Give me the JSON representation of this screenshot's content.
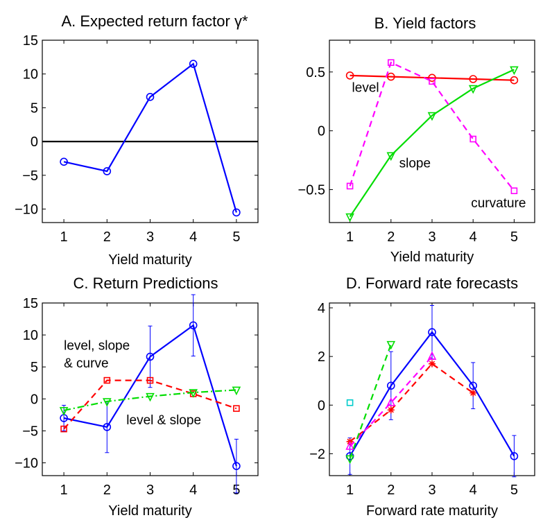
{
  "chart_data": [
    {
      "panel": "A",
      "type": "line",
      "title": "A. Expected return factor γ*",
      "xlabel": "Yield maturity",
      "ylabel": "",
      "x": [
        1,
        2,
        3,
        4,
        5
      ],
      "xlim": [
        0.5,
        5.5
      ],
      "ylim": [
        -12,
        15
      ],
      "yticks": [
        -10,
        -5,
        0,
        5,
        10,
        15
      ],
      "yticklabels": [
        "−10",
        "−5",
        "0",
        "5",
        "10",
        "15"
      ],
      "xticklabels": [
        "1",
        "2",
        "3",
        "4",
        "5"
      ],
      "zero_line": true,
      "series": [
        {
          "values": [
            -3.0,
            -4.4,
            6.6,
            11.5,
            -10.5
          ],
          "color": "#0000ff",
          "dash": "solid",
          "marker": "circle"
        }
      ],
      "annotations": []
    },
    {
      "panel": "B",
      "type": "line",
      "title": "B. Yield factors",
      "xlabel": "Yield maturity",
      "ylabel": "",
      "x": [
        1,
        2,
        3,
        4,
        5
      ],
      "xlim": [
        0.5,
        5.5
      ],
      "ylim": [
        -0.78,
        0.77
      ],
      "yticks": [
        -0.5,
        0,
        0.5
      ],
      "yticklabels": [
        "−0.5",
        "0",
        "0.5"
      ],
      "xticklabels": [
        "1",
        "2",
        "3",
        "4",
        "5"
      ],
      "zero_line": false,
      "series": [
        {
          "values": [
            0.47,
            0.46,
            0.45,
            0.44,
            0.43
          ],
          "color": "#ff0000",
          "dash": "solid",
          "marker": "circle"
        },
        {
          "values": [
            -0.73,
            -0.21,
            0.13,
            0.36,
            0.52
          ],
          "color": "#00dd00",
          "dash": "solid",
          "marker": "triangle-down"
        },
        {
          "values": [
            -0.47,
            0.58,
            0.42,
            -0.07,
            -0.51
          ],
          "color": "#ff00ff",
          "dash": "dashed",
          "marker": "square"
        }
      ],
      "annotations": [
        {
          "text": "level",
          "x": 1.05,
          "y": 0.33
        },
        {
          "text": "slope",
          "x": 2.2,
          "y": -0.31
        },
        {
          "text": "curvature",
          "x": 3.95,
          "y": -0.65
        }
      ]
    },
    {
      "panel": "C",
      "type": "line",
      "title": "C. Return Predictions",
      "xlabel": "Yield maturity",
      "ylabel": "",
      "x": [
        1,
        2,
        3,
        4,
        5
      ],
      "xlim": [
        0.5,
        5.5
      ],
      "ylim": [
        -12,
        15
      ],
      "yticks": [
        -10,
        -5,
        0,
        5,
        10,
        15
      ],
      "yticklabels": [
        "−10",
        "−5",
        "0",
        "5",
        "10",
        "15"
      ],
      "xticklabels": [
        "1",
        "2",
        "3",
        "4",
        "5"
      ],
      "zero_line": false,
      "series": [
        {
          "values": [
            -3.0,
            -4.4,
            6.6,
            11.5,
            -10.5
          ],
          "color": "#0000ff",
          "dash": "solid",
          "marker": "circle",
          "errors": [
            2.0,
            4.0,
            4.8,
            4.8,
            4.2
          ]
        },
        {
          "values": [
            -4.7,
            2.9,
            2.9,
            0.8,
            -1.5
          ],
          "color": "#ff0000",
          "dash": "dashed",
          "marker": "square"
        },
        {
          "values": [
            -1.8,
            -0.4,
            0.4,
            1.0,
            1.4
          ],
          "color": "#00dd00",
          "dash": "dashdot",
          "marker": "triangle-down"
        }
      ],
      "annotations": [
        {
          "text": "level, slope",
          "x": 1.0,
          "y": 7.7
        },
        {
          "text": "& curve",
          "x": 1.0,
          "y": 4.9
        },
        {
          "text": "level & slope",
          "x": 2.45,
          "y": -4.0
        }
      ]
    },
    {
      "panel": "D",
      "type": "line",
      "title": "D. Forward rate forecasts",
      "xlabel": "Forward rate maturity",
      "ylabel": "",
      "x": [
        1,
        2,
        3,
        4,
        5
      ],
      "xlim": [
        0.5,
        5.5
      ],
      "ylim": [
        -2.9,
        4.2
      ],
      "yticks": [
        -2,
        0,
        2,
        4
      ],
      "yticklabels": [
        "−2",
        "0",
        "2",
        "4"
      ],
      "xticklabels": [
        "1",
        "2",
        "3",
        "4",
        "5"
      ],
      "zero_line": false,
      "series": [
        {
          "values": [
            -2.1,
            0.8,
            3.0,
            0.8,
            -2.1
          ],
          "color": "#0000ff",
          "dash": "solid",
          "marker": "circle",
          "errors": [
            0.75,
            1.4,
            1.1,
            0.95,
            0.85
          ]
        },
        {
          "values": [
            -1.5,
            -0.2,
            1.7,
            0.5,
            null
          ],
          "color": "#ff0000",
          "dash": "dashed",
          "marker": "star"
        },
        {
          "values": [
            -1.7,
            0.1,
            2.0,
            null,
            null
          ],
          "color": "#ff00ff",
          "dash": "dashed",
          "marker": "triangle-up"
        },
        {
          "values": [
            -2.2,
            2.5,
            null,
            null,
            null
          ],
          "color": "#00dd00",
          "dash": "dashed",
          "marker": "triangle-down"
        },
        {
          "values": [
            0.1,
            null,
            null,
            null,
            null
          ],
          "color": "#00cccc",
          "dash": "none",
          "marker": "square"
        }
      ],
      "annotations": []
    }
  ]
}
